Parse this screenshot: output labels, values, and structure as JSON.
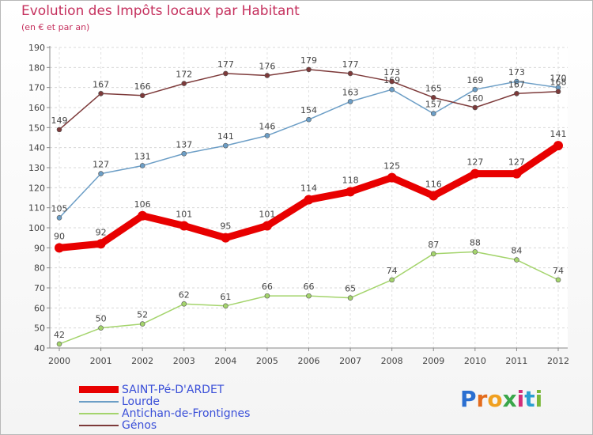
{
  "chart_data": {
    "type": "line",
    "title": "Evolution des Impôts locaux par Habitant",
    "subtitle": "(en € et par an)",
    "xlabel": "",
    "ylabel": "",
    "categories": [
      "2000",
      "2001",
      "2002",
      "2003",
      "2004",
      "2005",
      "2006",
      "2007",
      "2008",
      "2009",
      "2010",
      "2011",
      "2012"
    ],
    "y_ticks": [
      "40",
      "50",
      "60",
      "70",
      "80",
      "90",
      "100",
      "110",
      "120",
      "130",
      "140",
      "150",
      "160",
      "170",
      "180",
      "190"
    ],
    "ylim": [
      40,
      190
    ],
    "grid": true,
    "legend_position": "bottom-left",
    "series": [
      {
        "name": "SAINT-Pé-D'ARDET",
        "color": "#e80000",
        "values": [
          90,
          92,
          106,
          101,
          95,
          101,
          114,
          118,
          125,
          116,
          127,
          127,
          141
        ]
      },
      {
        "name": "Lourde",
        "color": "#6c9ec6",
        "values": [
          105,
          127,
          131,
          137,
          141,
          146,
          154,
          163,
          169,
          157,
          169,
          173,
          170
        ]
      },
      {
        "name": "Antichan-de-Frontignes",
        "color": "#a4d46c",
        "values": [
          42,
          50,
          52,
          62,
          61,
          66,
          66,
          65,
          74,
          87,
          88,
          84,
          74
        ]
      },
      {
        "name": "Génos",
        "color": "#7d3a3a",
        "values": [
          149,
          167,
          166,
          172,
          177,
          176,
          179,
          177,
          173,
          165,
          160,
          167,
          168
        ]
      }
    ]
  },
  "logo": {
    "letters": [
      "P",
      "r",
      "o",
      "x",
      "i",
      "t",
      "i"
    ],
    "colors": [
      "#2a6fd1",
      "#e36c1d",
      "#f0a020",
      "#3aa64a",
      "#d12e7a",
      "#2a9fd1",
      "#7ab83a"
    ]
  }
}
